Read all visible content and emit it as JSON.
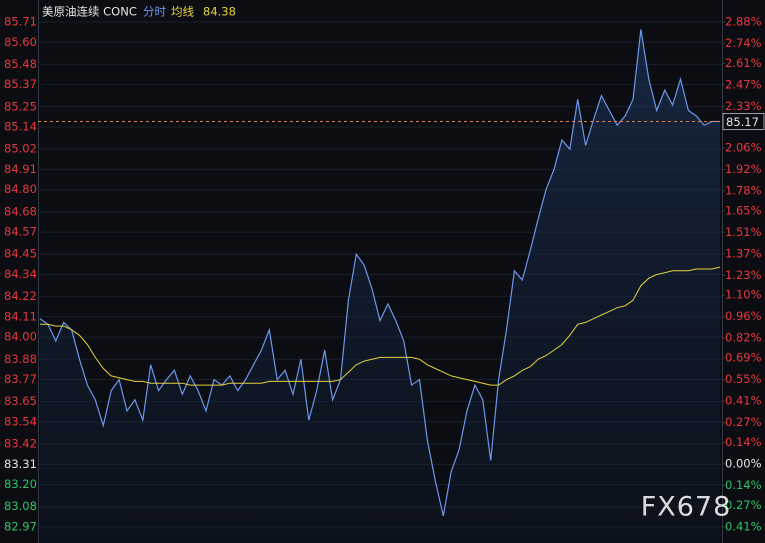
{
  "chart_data": {
    "type": "line",
    "title": "美原油连续 CONC",
    "avg_last": "84.38",
    "last_price": 85.17,
    "up_color": "#e8383d",
    "down_color": "#2fc46a",
    "flat_color": "#e6e6e6",
    "ylim": [
      82.97,
      85.71
    ],
    "yticks": [
      85.71,
      {
        "value": 85.6,
        "label": "85.60"
      },
      85.48,
      85.37,
      85.25,
      85.14,
      85.02,
      84.91,
      {
        "value": 84.8,
        "label": "84.80"
      },
      84.68,
      84.57,
      84.45,
      84.34,
      84.22,
      84.11,
      {
        "value": 84,
        "label": "84.00"
      },
      83.88,
      83.77,
      83.65,
      83.54,
      83.42,
      83.31,
      {
        "value": 83.2,
        "label": "83.20"
      },
      83.08,
      82.97
    ],
    "y2lim": [
      -0.41,
      2.88
    ],
    "y2ticks": [
      {
        "value": 2.88,
        "label": "2.88%"
      },
      {
        "value": 2.74,
        "label": "2.74%"
      },
      {
        "value": 2.61,
        "label": "2.61%"
      },
      {
        "value": 2.47,
        "label": "2.47%"
      },
      {
        "value": 2.33,
        "label": "2.33%"
      },
      {
        "value": 2.06,
        "label": "2.06%"
      },
      {
        "value": 1.92,
        "label": "1.92%"
      },
      {
        "value": 1.78,
        "label": "1.78%"
      },
      {
        "value": 1.65,
        "label": "1.65%"
      },
      {
        "value": 1.51,
        "label": "1.51%"
      },
      {
        "value": 1.37,
        "label": "1.37%"
      },
      {
        "value": 1.23,
        "label": "1.23%"
      },
      {
        "value": 1.1,
        "label": "1.10%"
      },
      {
        "value": 0.96,
        "label": "0.96%"
      },
      {
        "value": 0.82,
        "label": "0.82%"
      },
      {
        "value": 0.69,
        "label": "0.69%"
      },
      {
        "value": 0.55,
        "label": "0.55%"
      },
      {
        "value": 0.41,
        "label": "0.41%"
      },
      {
        "value": 0.27,
        "label": "0.27%"
      },
      {
        "value": 0.14,
        "label": "0.14%"
      },
      {
        "value": 0,
        "label": "0.00%"
      },
      {
        "value": -0.14,
        "label": "0.14%"
      },
      {
        "value": -0.27,
        "label": "0.27%"
      },
      {
        "value": -0.41,
        "label": "0.41%"
      }
    ],
    "series": [
      {
        "name": "分时",
        "color": "#6d97ea",
        "values": [
          84.1,
          84.07,
          83.98,
          84.08,
          84.04,
          83.88,
          83.74,
          83.66,
          83.52,
          83.71,
          83.77,
          83.6,
          83.66,
          83.55,
          83.85,
          83.71,
          83.77,
          83.82,
          83.69,
          83.79,
          83.71,
          83.6,
          83.77,
          83.74,
          83.79,
          83.71,
          83.77,
          83.85,
          83.93,
          84.04,
          83.77,
          83.82,
          83.69,
          83.88,
          83.55,
          83.71,
          83.93,
          83.66,
          83.77,
          84.2,
          84.45,
          84.39,
          84.26,
          84.09,
          84.18,
          84.09,
          83.98,
          83.74,
          83.77,
          83.44,
          83.22,
          83.03,
          83.27,
          83.39,
          83.6,
          83.74,
          83.66,
          83.33,
          83.77,
          84.04,
          84.36,
          84.31,
          84.47,
          84.64,
          84.8,
          84.91,
          85.07,
          85.02,
          85.29,
          85.04,
          85.18,
          85.31,
          85.23,
          85.15,
          85.2,
          85.29,
          85.67,
          85.4,
          85.23,
          85.34,
          85.26,
          85.4,
          85.23,
          85.2,
          85.15,
          85.17,
          85.17
        ]
      },
      {
        "name": "均线",
        "color": "#e6d23c",
        "values": [
          84.07,
          84.07,
          84.06,
          84.06,
          84.04,
          84.01,
          83.96,
          83.89,
          83.83,
          83.79,
          83.78,
          83.77,
          83.76,
          83.76,
          83.75,
          83.75,
          83.75,
          83.75,
          83.75,
          83.74,
          83.74,
          83.74,
          83.74,
          83.74,
          83.75,
          83.75,
          83.75,
          83.75,
          83.75,
          83.76,
          83.76,
          83.76,
          83.76,
          83.76,
          83.76,
          83.76,
          83.76,
          83.76,
          83.77,
          83.81,
          83.85,
          83.87,
          83.88,
          83.89,
          83.89,
          83.89,
          83.89,
          83.89,
          83.88,
          83.85,
          83.83,
          83.81,
          83.79,
          83.78,
          83.77,
          83.76,
          83.75,
          83.74,
          83.74,
          83.77,
          83.79,
          83.82,
          83.84,
          83.88,
          83.9,
          83.93,
          83.96,
          84.01,
          84.07,
          84.08,
          84.1,
          84.12,
          84.14,
          84.16,
          84.17,
          84.2,
          84.28,
          84.32,
          84.34,
          84.35,
          84.36,
          84.36,
          84.36,
          84.37,
          84.37,
          84.37,
          84.38
        ]
      }
    ],
    "watermark": "FX678"
  }
}
